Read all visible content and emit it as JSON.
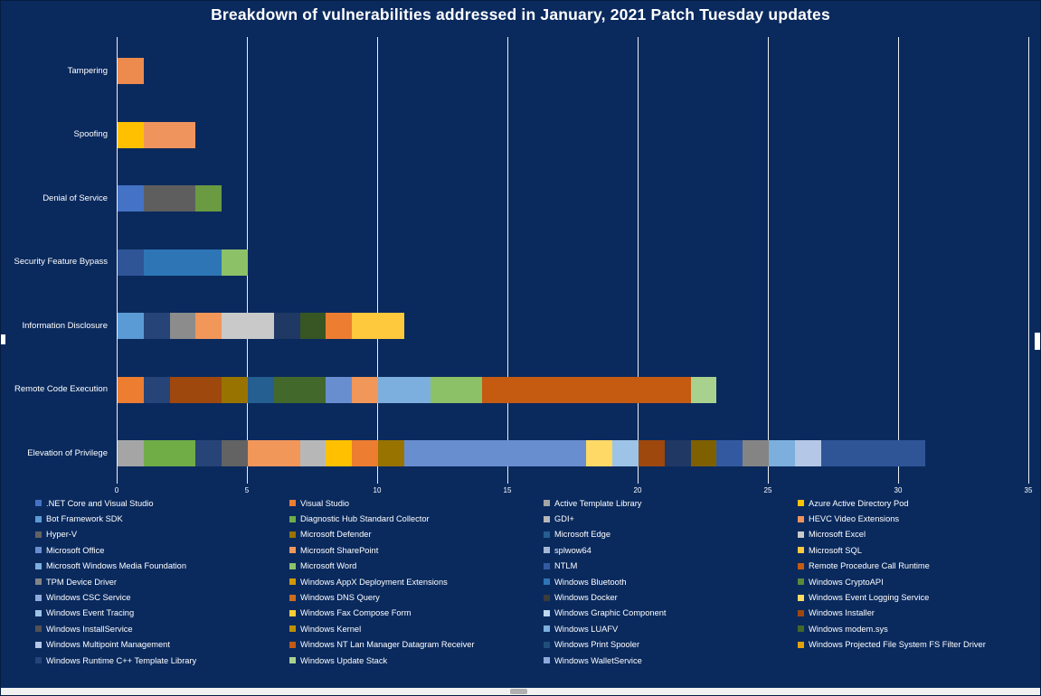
{
  "theme": {
    "background": "#0a2a5e",
    "grid_color": "#ffffff",
    "text_color": "#ffffff",
    "scrollbar_track": "#f1f1f1",
    "scrollbar_thumb": "#b0b0b0"
  },
  "chart_data": {
    "type": "bar",
    "variant": "horizontal-stacked",
    "title": "Breakdown of vulnerabilities addressed in January, 2021 Patch Tuesday updates",
    "xlim": [
      0,
      35
    ],
    "x_ticks": [
      0,
      5,
      10,
      15,
      20,
      25,
      30,
      35
    ],
    "grid": true,
    "legend_position": "bottom",
    "categories": [
      "Tampering",
      "Spoofing",
      "Denial of Service",
      "Security Feature Bypass",
      "Information Disclosure",
      "Remote Code Execution",
      "Elevation of Privilege"
    ],
    "bars": [
      {
        "category": "Tampering",
        "total": 1,
        "segments": [
          {
            "value": 1,
            "color": "#ED8A4E"
          }
        ]
      },
      {
        "category": "Spoofing",
        "total": 3,
        "segments": [
          {
            "value": 1,
            "color": "#FFC000"
          },
          {
            "value": 2,
            "color": "#F0945E"
          }
        ]
      },
      {
        "category": "Denial of Service",
        "total": 4,
        "segments": [
          {
            "value": 1,
            "color": "#4472C4"
          },
          {
            "value": 2,
            "color": "#5E5E5E"
          },
          {
            "value": 1,
            "color": "#6A9A41"
          }
        ]
      },
      {
        "category": "Security Feature Bypass",
        "total": 5,
        "segments": [
          {
            "value": 1,
            "color": "#2F5597"
          },
          {
            "value": 3,
            "color": "#2E75B6"
          },
          {
            "value": 1,
            "color": "#8CC168"
          }
        ]
      },
      {
        "category": "Information Disclosure",
        "total": 11,
        "segments": [
          {
            "value": 1,
            "color": "#5B9BD5"
          },
          {
            "value": 1,
            "color": "#264478"
          },
          {
            "value": 1,
            "color": "#8C8C8C"
          },
          {
            "value": 1,
            "color": "#F1975A"
          },
          {
            "value": 2,
            "color": "#C9C9C9"
          },
          {
            "value": 1,
            "color": "#1F3864"
          },
          {
            "value": 1,
            "color": "#375623"
          },
          {
            "value": 1,
            "color": "#ED7D31"
          },
          {
            "value": 2,
            "color": "#FFC93E"
          }
        ]
      },
      {
        "category": "Remote Code Execution",
        "total": 23,
        "segments": [
          {
            "value": 1,
            "color": "#ED7D31"
          },
          {
            "value": 1,
            "color": "#264478"
          },
          {
            "value": 2,
            "color": "#9E480E"
          },
          {
            "value": 1,
            "color": "#997300"
          },
          {
            "value": 1,
            "color": "#255E91"
          },
          {
            "value": 2,
            "color": "#43682B"
          },
          {
            "value": 1,
            "color": "#698ED0"
          },
          {
            "value": 1,
            "color": "#F1975A"
          },
          {
            "value": 2,
            "color": "#7CAFDD"
          },
          {
            "value": 2,
            "color": "#8CC168"
          },
          {
            "value": 8,
            "color": "#C55A11"
          },
          {
            "value": 1,
            "color": "#A9D18E"
          }
        ]
      },
      {
        "category": "Elevation of Privilege",
        "total": 31,
        "segments": [
          {
            "value": 1,
            "color": "#A5A5A5"
          },
          {
            "value": 2,
            "color": "#70AD47"
          },
          {
            "value": 1,
            "color": "#264478"
          },
          {
            "value": 1,
            "color": "#636363"
          },
          {
            "value": 2,
            "color": "#F1975A"
          },
          {
            "value": 1,
            "color": "#B7B7B7"
          },
          {
            "value": 1,
            "color": "#FFC000"
          },
          {
            "value": 1,
            "color": "#ED7D31"
          },
          {
            "value": 1,
            "color": "#997300"
          },
          {
            "value": 7,
            "color": "#698ED0"
          },
          {
            "value": 1,
            "color": "#FFD966"
          },
          {
            "value": 1,
            "color": "#9DC3E6"
          },
          {
            "value": 1,
            "color": "#9E480E"
          },
          {
            "value": 1,
            "color": "#1F3864"
          },
          {
            "value": 1,
            "color": "#7F6000"
          },
          {
            "value": 1,
            "color": "#335AA1"
          },
          {
            "value": 1,
            "color": "#848484"
          },
          {
            "value": 1,
            "color": "#7CAFDD"
          },
          {
            "value": 1,
            "color": "#B4C7E7"
          },
          {
            "value": 4,
            "color": "#2F5597"
          }
        ]
      }
    ],
    "legend_columns": [
      [
        {
          "label": ".NET Core and Visual Studio",
          "color": "#4472C4"
        },
        {
          "label": "Bot Framework SDK",
          "color": "#5B9BD5"
        },
        {
          "label": "Hyper-V",
          "color": "#636363"
        },
        {
          "label": "Microsoft Office",
          "color": "#698ED0"
        },
        {
          "label": "Microsoft Windows Media Foundation",
          "color": "#7CAFDD"
        },
        {
          "label": "TPM Device Driver",
          "color": "#848484"
        },
        {
          "label": "Windows CSC Service",
          "color": "#8FAADC"
        },
        {
          "label": "Windows Event Tracing",
          "color": "#9DC3E6"
        },
        {
          "label": "Windows InstallService",
          "color": "#525252"
        },
        {
          "label": "Windows Multipoint Management",
          "color": "#B4C7E7"
        },
        {
          "label": "Windows Runtime C++ Template Library",
          "color": "#264478"
        }
      ],
      [
        {
          "label": "Visual Studio",
          "color": "#ED7D31"
        },
        {
          "label": "Diagnostic Hub Standard Collector",
          "color": "#70AD47"
        },
        {
          "label": "Microsoft Defender",
          "color": "#997300"
        },
        {
          "label": "Microsoft SharePoint",
          "color": "#F1975A"
        },
        {
          "label": "Microsoft Word",
          "color": "#8CC168"
        },
        {
          "label": "Windows AppX Deployment Extensions",
          "color": "#D09900"
        },
        {
          "label": "Windows DNS Query",
          "color": "#CB6C1D"
        },
        {
          "label": "Windows Fax Compose Form",
          "color": "#FFCD33"
        },
        {
          "label": "Windows Kernel",
          "color": "#BF8F00"
        },
        {
          "label": "Windows NT Lan Manager Datagram Receiver",
          "color": "#C55A11"
        },
        {
          "label": "Windows Update Stack",
          "color": "#A9D18E"
        }
      ],
      [
        {
          "label": "Active Template Library",
          "color": "#A5A5A5"
        },
        {
          "label": "GDI+",
          "color": "#B7B7B7"
        },
        {
          "label": "Microsoft Edge",
          "color": "#255E91"
        },
        {
          "label": "splwow64",
          "color": "#A6B8D4"
        },
        {
          "label": "NTLM",
          "color": "#335AA1"
        },
        {
          "label": "Windows Bluetooth",
          "color": "#2E75B6"
        },
        {
          "label": "Windows Docker",
          "color": "#3B3B3B"
        },
        {
          "label": "Windows Graphic Component",
          "color": "#BDD7EE"
        },
        {
          "label": "Windows LUAFV",
          "color": "#7CAFDD"
        },
        {
          "label": "Windows Print Spooler",
          "color": "#1F4E79"
        },
        {
          "label": "Windows WalletService",
          "color": "#8EA9DB"
        }
      ],
      [
        {
          "label": "Azure Active Directory Pod",
          "color": "#FFC000"
        },
        {
          "label": "HEVC Video Extensions",
          "color": "#F0945E"
        },
        {
          "label": "Microsoft Excel",
          "color": "#C9C9C9"
        },
        {
          "label": "Microsoft SQL",
          "color": "#FFC93E"
        },
        {
          "label": "Remote Procedure Call Runtime",
          "color": "#C55A11"
        },
        {
          "label": "Windows CryptoAPI",
          "color": "#5A8A39"
        },
        {
          "label": "Windows Event Logging Service",
          "color": "#FFD966"
        },
        {
          "label": "Windows Installer",
          "color": "#9E480E"
        },
        {
          "label": "Windows modem.sys",
          "color": "#43682B"
        },
        {
          "label": "Windows Projected File System FS Filter Driver",
          "color": "#E3A008"
        }
      ]
    ]
  }
}
